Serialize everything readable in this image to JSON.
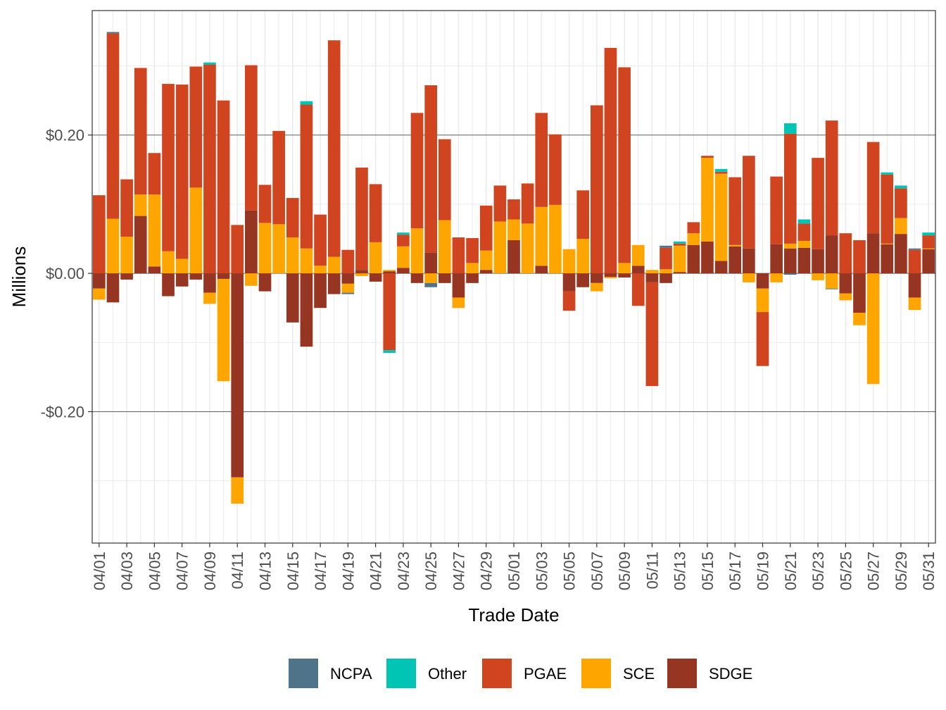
{
  "chart_data": {
    "type": "bar",
    "stacked": true,
    "xlabel": "Trade Date",
    "ylabel": "Millions",
    "ylim": [
      -0.39,
      0.38
    ],
    "yticks": [
      -0.2,
      0,
      0.2
    ],
    "ytick_labels": [
      "-$0.20",
      "$0.00",
      "$0.20"
    ],
    "dates": [
      "04/01",
      "04/02",
      "04/03",
      "04/04",
      "04/05",
      "04/06",
      "04/07",
      "04/08",
      "04/09",
      "04/10",
      "04/11",
      "04/12",
      "04/13",
      "04/14",
      "04/15",
      "04/16",
      "04/17",
      "04/18",
      "04/19",
      "04/20",
      "04/21",
      "04/22",
      "04/23",
      "04/24",
      "04/25",
      "04/26",
      "04/27",
      "04/28",
      "04/29",
      "04/30",
      "05/01",
      "05/02",
      "05/03",
      "05/04",
      "05/05",
      "05/06",
      "05/07",
      "05/08",
      "05/09",
      "05/10",
      "05/11",
      "05/12",
      "05/13",
      "05/14",
      "05/15",
      "05/16",
      "05/17",
      "05/18",
      "05/19",
      "05/20",
      "05/21",
      "05/22",
      "05/23",
      "05/24",
      "05/25",
      "05/26",
      "05/27",
      "05/28",
      "05/29",
      "05/30",
      "05/31"
    ],
    "tick_labels": [
      "04/01",
      "04/03",
      "04/05",
      "04/07",
      "04/09",
      "04/11",
      "04/13",
      "04/15",
      "04/17",
      "04/19",
      "04/21",
      "04/23",
      "04/25",
      "04/27",
      "04/29",
      "05/01",
      "05/03",
      "05/05",
      "05/07",
      "05/09",
      "05/11",
      "05/13",
      "05/15",
      "05/17",
      "05/19",
      "05/21",
      "05/23",
      "05/25",
      "05/27",
      "05/29",
      "05/31"
    ],
    "stack_order": [
      "SDGE",
      "SCE",
      "PGAE",
      "Other",
      "NCPA"
    ],
    "legend_order": [
      "NCPA",
      "Other",
      "PGAE",
      "SCE",
      "SDGE"
    ],
    "colors": {
      "NCPA": "#4f7388",
      "Other": "#00c5b5",
      "PGAE": "#d04520",
      "SCE": "#fea500",
      "SDGE": "#953522"
    },
    "series": [
      {
        "name": "NCPA",
        "values": [
          0,
          0.002,
          0,
          0,
          0,
          0,
          0,
          0,
          0,
          0,
          0,
          0,
          0,
          0,
          0,
          0,
          0,
          0,
          -0.002,
          0,
          0,
          0,
          0,
          0,
          -0.006,
          0,
          0,
          0,
          0,
          0,
          0,
          0,
          0,
          0,
          0,
          0,
          0,
          0,
          0,
          0,
          0,
          0.003,
          0,
          0,
          0,
          0,
          0,
          0,
          0,
          0,
          -0.002,
          0,
          0,
          -0.001,
          0,
          0,
          0,
          0,
          0,
          0.002,
          0
        ]
      },
      {
        "name": "Other",
        "values": [
          0,
          0,
          0,
          0,
          0,
          0,
          0,
          0,
          0.003,
          0,
          0,
          0,
          0,
          0,
          0,
          0.005,
          0,
          0,
          0,
          0,
          0,
          -0.004,
          0.003,
          0,
          0,
          0,
          0,
          0,
          0,
          0,
          0,
          0,
          0,
          0,
          0,
          0,
          0,
          0,
          0,
          0,
          0,
          0,
          0.003,
          0,
          0,
          0.004,
          0,
          0,
          0,
          0,
          0.015,
          0.006,
          0,
          0,
          0,
          0,
          0,
          0.003,
          0.004,
          0,
          0.004
        ]
      },
      {
        "name": "PGAE",
        "values": [
          0.113,
          0.268,
          0.083,
          0.183,
          0.06,
          0.242,
          0.252,
          0.175,
          0.302,
          0.25,
          0.07,
          0.21,
          0.055,
          0.135,
          0.057,
          0.208,
          0.074,
          0.313,
          0.034,
          0.148,
          0.084,
          -0.111,
          0.017,
          0.167,
          0.242,
          0.117,
          0.052,
          0.036,
          0.065,
          0.052,
          0.029,
          0.058,
          0.136,
          0.102,
          -0.028,
          0.07,
          0.243,
          0.326,
          0.283,
          -0.047,
          -0.15,
          0.031,
          0.003,
          0.016,
          0.003,
          0.003,
          0.098,
          0.134,
          -0.078,
          0.098,
          0.159,
          0.025,
          0.132,
          0.166,
          0.058,
          0.048,
          0.132,
          0.1,
          0.043,
          0.034,
          0.019
        ]
      },
      {
        "name": "SCE",
        "values": [
          -0.016,
          0.079,
          0.053,
          0.031,
          0.104,
          0.032,
          0.021,
          0.124,
          -0.016,
          -0.148,
          -0.038,
          -0.018,
          0.073,
          0.071,
          0.052,
          0.036,
          0.011,
          0.024,
          -0.013,
          -0.004,
          0.045,
          0.002,
          0.031,
          0.065,
          -0.014,
          0.077,
          -0.015,
          0.015,
          0.028,
          0.075,
          0.03,
          0.072,
          0.085,
          0.099,
          0.035,
          0.05,
          -0.012,
          -0.002,
          0.015,
          0.03,
          0.005,
          0.006,
          0.038,
          0.017,
          0.121,
          0.126,
          0.002,
          -0.013,
          -0.034,
          -0.013,
          0.007,
          0.01,
          -0.01,
          -0.022,
          -0.01,
          -0.018,
          -0.16,
          0.001,
          0.023,
          -0.018,
          0.001
        ]
      },
      {
        "name": "SDGE",
        "values": [
          -0.022,
          -0.042,
          -0.009,
          0.083,
          0.01,
          -0.033,
          -0.019,
          -0.009,
          -0.028,
          -0.008,
          -0.295,
          0.091,
          -0.026,
          0.0,
          -0.071,
          -0.106,
          -0.05,
          -0.03,
          -0.015,
          0.005,
          -0.012,
          0.003,
          0.008,
          -0.014,
          0.03,
          -0.014,
          -0.035,
          -0.014,
          0.005,
          0.0,
          0.048,
          0.0,
          0.011,
          0.0,
          -0.026,
          -0.02,
          -0.014,
          -0.005,
          -0.006,
          0.011,
          -0.013,
          -0.014,
          0.002,
          0.041,
          0.046,
          0.018,
          0.039,
          0.036,
          -0.022,
          0.042,
          0.036,
          0.037,
          0.035,
          0.055,
          -0.029,
          -0.057,
          0.058,
          0.042,
          0.057,
          -0.035,
          0.035
        ]
      }
    ]
  }
}
